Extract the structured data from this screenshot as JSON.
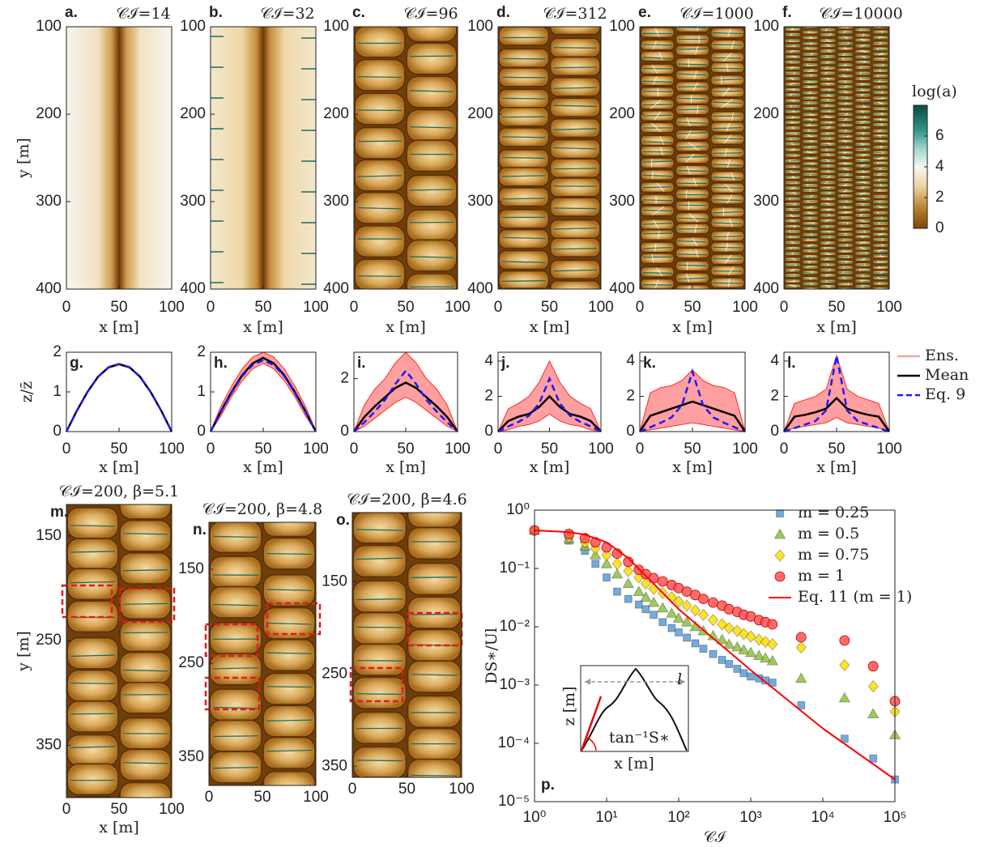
{
  "chart_data": [
    {
      "type": "image",
      "panel": "a.",
      "title": "𝒞ℐ=14",
      "xlabel": "x [m]",
      "ylabel": "y [m]",
      "xlim": [
        0,
        100
      ],
      "ylim": [
        100,
        400
      ],
      "xticks": [
        0,
        50,
        100
      ],
      "yticks": [
        100,
        200,
        300,
        400
      ]
    },
    {
      "type": "image",
      "panel": "b.",
      "title": "𝒞ℐ=32",
      "xlabel": "x [m]",
      "xlim": [
        0,
        100
      ],
      "ylim": [
        100,
        400
      ],
      "xticks": [
        0,
        50,
        100
      ],
      "yticks": [
        100,
        200,
        300,
        400
      ]
    },
    {
      "type": "image",
      "panel": "c.",
      "title": "𝒞ℐ=96",
      "xlabel": "x [m]",
      "xlim": [
        0,
        100
      ],
      "ylim": [
        100,
        400
      ],
      "xticks": [
        0,
        50,
        100
      ],
      "yticks": [
        100,
        200,
        300,
        400
      ]
    },
    {
      "type": "image",
      "panel": "d.",
      "title": "𝒞ℐ=312",
      "xlabel": "x [m]",
      "xlim": [
        0,
        100
      ],
      "ylim": [
        100,
        400
      ],
      "xticks": [
        0,
        50,
        100
      ],
      "yticks": [
        100,
        200,
        300,
        400
      ]
    },
    {
      "type": "image",
      "panel": "e.",
      "title": "𝒞ℐ=1000",
      "xlabel": "x [m]",
      "xlim": [
        0,
        100
      ],
      "ylim": [
        100,
        400
      ],
      "xticks": [
        0,
        50,
        100
      ],
      "yticks": [
        100,
        200,
        300,
        400
      ]
    },
    {
      "type": "image",
      "panel": "f.",
      "title": "𝒞ℐ=10000",
      "xlabel": "x [m]",
      "xlim": [
        0,
        100
      ],
      "ylim": [
        100,
        400
      ],
      "xticks": [
        0,
        50,
        100
      ],
      "yticks": [
        100,
        200,
        300,
        400
      ]
    },
    {
      "type": "colorbar",
      "label": "log(a)",
      "ylim": [
        0,
        8
      ],
      "yticks": [
        0,
        2,
        4,
        6
      ]
    },
    {
      "type": "line",
      "panel": "g.",
      "ylabel": "z/z̄",
      "xlabel": "x [m]",
      "xlim": [
        0,
        100
      ],
      "ylim": [
        0,
        2
      ],
      "xticks": [
        0,
        50,
        100
      ],
      "yticks": [
        0,
        1,
        2
      ],
      "x": [
        0,
        10,
        20,
        30,
        40,
        50,
        60,
        70,
        80,
        90,
        100
      ],
      "series": [
        {
          "color": "#ff2a2a",
          "values": [
            0,
            0.55,
            1.02,
            1.4,
            1.64,
            1.72,
            1.64,
            1.4,
            1.02,
            0.55,
            0
          ],
          "lower": [
            0,
            0.51,
            0.98,
            1.36,
            1.6,
            1.68,
            1.6,
            1.36,
            0.98,
            0.51,
            0
          ]
        },
        {
          "color": "#000000",
          "values": [
            0,
            0.53,
            1,
            1.38,
            1.62,
            1.7,
            1.62,
            1.38,
            1,
            0.53,
            0
          ]
        },
        {
          "color": "#1a1aff",
          "values": [
            0,
            0.53,
            1,
            1.38,
            1.62,
            1.7,
            1.62,
            1.38,
            1,
            0.53,
            0
          ]
        }
      ]
    },
    {
      "type": "line",
      "panel": "h.",
      "xlabel": "x [m]",
      "xlim": [
        0,
        100
      ],
      "ylim": [
        0,
        2
      ],
      "xticks": [
        0,
        50,
        100
      ],
      "yticks": [
        0,
        1,
        2
      ],
      "x": [
        0,
        10,
        20,
        30,
        40,
        50,
        60,
        70,
        80,
        90,
        100
      ],
      "series": [
        {
          "color": "#ff2a2a",
          "values": [
            0,
            0.65,
            1.15,
            1.58,
            1.88,
            2,
            1.88,
            1.58,
            1.15,
            0.65,
            0
          ],
          "lower": [
            0,
            0.4,
            0.88,
            1.28,
            1.58,
            1.72,
            1.58,
            1.28,
            0.88,
            0.4,
            0
          ]
        },
        {
          "color": "#000000",
          "values": [
            0,
            0.52,
            1,
            1.42,
            1.72,
            1.86,
            1.72,
            1.42,
            1,
            0.52,
            0
          ]
        },
        {
          "color": "#1a1aff",
          "values": [
            0,
            0.5,
            0.98,
            1.4,
            1.68,
            1.8,
            1.68,
            1.4,
            0.98,
            0.5,
            0
          ]
        }
      ]
    },
    {
      "type": "line",
      "panel": "i.",
      "xlabel": "x [m]",
      "xlim": [
        0,
        100
      ],
      "ylim": [
        0,
        3
      ],
      "xticks": [
        0,
        50,
        100
      ],
      "yticks": [
        0,
        2
      ],
      "x": [
        0,
        10,
        20,
        30,
        40,
        50,
        60,
        70,
        80,
        90,
        100
      ],
      "series": [
        {
          "color": "#ff2a2a",
          "values": [
            0,
            1,
            1.6,
            2,
            2.6,
            3,
            2.6,
            2,
            1.6,
            1,
            0
          ],
          "lower": [
            0,
            0.2,
            0.5,
            0.8,
            1.1,
            1.3,
            1.1,
            0.8,
            0.5,
            0.2,
            0
          ]
        },
        {
          "color": "#000000",
          "values": [
            0,
            0.55,
            0.95,
            1.3,
            1.65,
            1.85,
            1.65,
            1.3,
            0.95,
            0.55,
            0
          ]
        },
        {
          "color": "#1a1aff",
          "values": [
            0,
            0.35,
            0.75,
            1.2,
            1.8,
            2.3,
            1.8,
            1.2,
            0.75,
            0.35,
            0
          ]
        }
      ]
    },
    {
      "type": "line",
      "panel": "j.",
      "xlabel": "x [m]",
      "xlim": [
        0,
        100
      ],
      "ylim": [
        0,
        4.5
      ],
      "xticks": [
        0,
        50,
        100
      ],
      "yticks": [
        0,
        2,
        4
      ],
      "x": [
        0,
        10,
        20,
        30,
        40,
        50,
        60,
        70,
        80,
        90,
        100
      ],
      "series": [
        {
          "color": "#ff2a2a",
          "values": [
            0,
            1.3,
            1.6,
            2,
            2.8,
            4,
            2.8,
            2,
            1.6,
            1.3,
            0
          ],
          "lower": [
            0,
            0.1,
            0.3,
            0.4,
            0.6,
            1,
            0.6,
            0.4,
            0.3,
            0.1,
            0
          ]
        },
        {
          "color": "#000000",
          "values": [
            0,
            0.6,
            0.85,
            1,
            1.4,
            2,
            1.4,
            1,
            0.85,
            0.6,
            0
          ]
        },
        {
          "color": "#1a1aff",
          "values": [
            0,
            0.3,
            0.55,
            0.9,
            1.6,
            3,
            1.6,
            0.9,
            0.55,
            0.3,
            0
          ]
        }
      ]
    },
    {
      "type": "line",
      "panel": "k.",
      "xlabel": "x [m]",
      "xlim": [
        0,
        100
      ],
      "ylim": [
        0,
        4.5
      ],
      "xticks": [
        0,
        50,
        100
      ],
      "yticks": [
        0,
        2,
        4
      ],
      "x": [
        0,
        10,
        20,
        30,
        40,
        50,
        60,
        70,
        80,
        90,
        100
      ],
      "series": [
        {
          "color": "#ff2a2a",
          "values": [
            0,
            2.2,
            2.5,
            2.6,
            2.9,
            3.5,
            2.9,
            2.6,
            2.5,
            2.2,
            0
          ],
          "lower": [
            0,
            0.1,
            0.2,
            0.3,
            0.4,
            0.5,
            0.4,
            0.3,
            0.2,
            0.1,
            0
          ]
        },
        {
          "color": "#000000",
          "values": [
            0,
            0.9,
            1.1,
            1.3,
            1.5,
            1.7,
            1.5,
            1.3,
            1.1,
            0.9,
            0
          ]
        },
        {
          "color": "#1a1aff",
          "values": [
            0,
            0.25,
            0.5,
            0.8,
            1.5,
            3.4,
            1.5,
            0.8,
            0.5,
            0.25,
            0
          ]
        }
      ]
    },
    {
      "type": "line",
      "panel": "l.",
      "xlabel": "x [m]",
      "xlim": [
        0,
        100
      ],
      "ylim": [
        0,
        4.5
      ],
      "xticks": [
        0,
        50,
        100
      ],
      "yticks": [
        0,
        2,
        4
      ],
      "x": [
        0,
        10,
        20,
        30,
        40,
        50,
        60,
        70,
        80,
        90,
        100
      ],
      "series": [
        {
          "name": "Ens.",
          "color": "#ff2a2a",
          "values": [
            0,
            1.6,
            1.8,
            2,
            2.4,
            4.3,
            2.4,
            2,
            1.8,
            1.6,
            0
          ],
          "lower": [
            0,
            0.2,
            0.3,
            0.4,
            0.5,
            0.8,
            0.5,
            0.4,
            0.3,
            0.2,
            0
          ]
        },
        {
          "name": "Mean",
          "color": "#000000",
          "values": [
            0,
            0.85,
            0.95,
            1.1,
            1.3,
            1.9,
            1.3,
            1.1,
            0.95,
            0.85,
            0
          ]
        },
        {
          "name": "Eq. 9",
          "color": "#1a1aff",
          "values": [
            0,
            0.2,
            0.4,
            0.6,
            1.2,
            4.3,
            1.2,
            0.6,
            0.4,
            0.2,
            0
          ]
        }
      ]
    },
    {
      "type": "image",
      "panel": "m.",
      "title": "𝒞ℐ=200, β=5.1",
      "xlabel": "x [m]",
      "ylabel": "y [m]",
      "xlim": [
        0,
        100
      ],
      "ylim": [
        120,
        400
      ],
      "xticks": [
        0,
        50,
        100
      ],
      "yticks": [
        150,
        250,
        350
      ]
    },
    {
      "type": "image",
      "panel": "n.",
      "title": "𝒞ℐ=200, β=4.8",
      "xlim": [
        0,
        100
      ],
      "ylim": [
        100,
        380
      ],
      "xticks": [
        0,
        50,
        100
      ],
      "yticks": [
        150,
        250,
        350
      ]
    },
    {
      "type": "image",
      "panel": "o.",
      "title": "𝒞ℐ=200, β=4.6",
      "xlim": [
        0,
        100
      ],
      "ylim": [
        75,
        362
      ],
      "xticks": [
        0,
        50,
        100
      ],
      "yticks": [
        150,
        250,
        350
      ]
    },
    {
      "type": "scatter",
      "panel": "p.",
      "xlabel": "𝒞ℐ",
      "ylabel": "DS∗/Ul",
      "log": true,
      "xlim": [
        1,
        100000
      ],
      "ylim": [
        1e-05,
        1
      ],
      "xticks": [
        {
          "value": 1,
          "label": "10⁰"
        },
        {
          "value": 10,
          "label": "10¹"
        },
        {
          "value": 100,
          "label": "10²"
        },
        {
          "value": 1000,
          "label": "10³"
        },
        {
          "value": 10000,
          "label": "10⁴"
        },
        {
          "value": 100000,
          "label": "10⁵"
        }
      ],
      "yticks": [
        {
          "value": 1e-05,
          "label": "10⁻⁵"
        },
        {
          "value": 0.0001,
          "label": "10⁻⁴"
        },
        {
          "value": 0.001,
          "label": "10⁻³"
        },
        {
          "value": 0.01,
          "label": "10⁻²"
        },
        {
          "value": 0.1,
          "label": "10⁻¹"
        },
        {
          "value": 1,
          "label": "10⁰"
        }
      ],
      "x": [
        1,
        3,
        5,
        7,
        10,
        14,
        20,
        28,
        35,
        45,
        60,
        80,
        100,
        130,
        170,
        220,
        300,
        400,
        500,
        650,
        800,
        1000,
        1300,
        1600,
        2000,
        5000,
        20000,
        50000,
        100000
      ],
      "series": [
        {
          "name": "m = 0.25",
          "marker": "square",
          "color": "#5b9bd5",
          "values": [
            0.45,
            0.3,
            0.2,
            0.12,
            0.07,
            0.04,
            0.03,
            0.024,
            0.02,
            0.016,
            0.012,
            0.0095,
            0.008,
            0.0065,
            0.0052,
            0.0042,
            0.0034,
            0.0027,
            0.0023,
            0.0019,
            0.0016,
            0.0014,
            0.0013,
            0.0012,
            0.0011,
            0.00045,
            0.00012,
            5.5e-05,
            2.4e-05
          ]
        },
        {
          "name": "m = 0.5",
          "marker": "triangle",
          "color": "#8fbf3f",
          "values": [
            0.45,
            0.32,
            0.24,
            0.17,
            0.12,
            0.08,
            0.055,
            0.04,
            0.032,
            0.026,
            0.021,
            0.017,
            0.014,
            0.012,
            0.01,
            0.0085,
            0.007,
            0.006,
            0.005,
            0.0045,
            0.004,
            0.0036,
            0.0032,
            0.0029,
            0.0026,
            0.0013,
            0.0006,
            0.00032,
            0.00014
          ]
        },
        {
          "name": "m = 0.75",
          "marker": "diamond",
          "color": "#ffdd00",
          "values": [
            0.45,
            0.35,
            0.28,
            0.22,
            0.17,
            0.12,
            0.09,
            0.07,
            0.055,
            0.045,
            0.038,
            0.032,
            0.027,
            0.023,
            0.019,
            0.016,
            0.013,
            0.011,
            0.0095,
            0.0085,
            0.0075,
            0.0068,
            0.006,
            0.0055,
            0.005,
            0.0044,
            0.0022,
            0.00095,
            0.00035
          ]
        },
        {
          "name": "m = 1",
          "marker": "circle",
          "color": "#ff5050",
          "values": [
            0.45,
            0.39,
            0.33,
            0.28,
            0.23,
            0.18,
            0.13,
            0.095,
            0.08,
            0.068,
            0.06,
            0.052,
            0.046,
            0.04,
            0.035,
            0.03,
            0.026,
            0.023,
            0.02,
            0.018,
            0.016,
            0.015,
            0.013,
            0.012,
            0.011,
            0.0066,
            0.0058,
            0.0021,
            0.00053
          ]
        },
        {
          "name": "Eq. 11 (m = 1)",
          "marker": "line",
          "color": "#ff0000",
          "x": [
            1,
            3,
            5,
            10,
            20,
            30,
            50,
            100,
            1000,
            10000,
            100000
          ],
          "values": [
            0.45,
            0.42,
            0.38,
            0.28,
            0.15,
            0.09,
            0.048,
            0.02,
            0.0018,
            0.00018,
            2.4e-05
          ]
        }
      ],
      "inset": {
        "xlabel": "x [m]",
        "ylabel": "z [m]",
        "length": "l",
        "angle": "tan⁻¹S∗"
      }
    }
  ]
}
